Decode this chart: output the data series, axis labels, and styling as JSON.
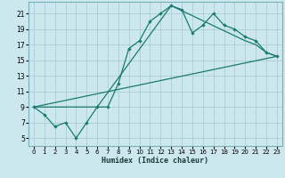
{
  "xlabel": "Humidex (Indice chaleur)",
  "xlim": [
    -0.5,
    23.5
  ],
  "ylim": [
    4,
    22.5
  ],
  "xticks": [
    0,
    1,
    2,
    3,
    4,
    5,
    6,
    7,
    8,
    9,
    10,
    11,
    12,
    13,
    14,
    15,
    16,
    17,
    18,
    19,
    20,
    21,
    22,
    23
  ],
  "yticks": [
    5,
    7,
    9,
    11,
    13,
    15,
    17,
    19,
    21
  ],
  "bg_color": "#cce8ee",
  "line_color": "#1a7a6e",
  "grid_color": "#aacdd5",
  "line1_x": [
    0,
    1,
    2,
    3,
    4,
    5,
    6,
    7,
    8,
    9,
    10,
    11,
    12,
    13,
    14,
    15,
    16,
    17,
    18,
    19,
    20,
    21,
    22,
    23
  ],
  "line1_y": [
    9,
    8,
    6.5,
    7,
    5,
    7,
    9,
    9,
    12,
    16.5,
    17.5,
    20,
    21,
    22,
    21.5,
    18.5,
    19.5,
    21,
    19.5,
    19,
    18,
    17.5,
    16,
    15.5
  ],
  "line2_x": [
    0,
    6,
    13,
    20,
    21,
    22,
    23
  ],
  "line2_y": [
    9,
    9,
    22,
    17.5,
    17,
    16,
    15.5
  ],
  "line3_x": [
    0,
    23
  ],
  "line3_y": [
    9,
    15.5
  ]
}
